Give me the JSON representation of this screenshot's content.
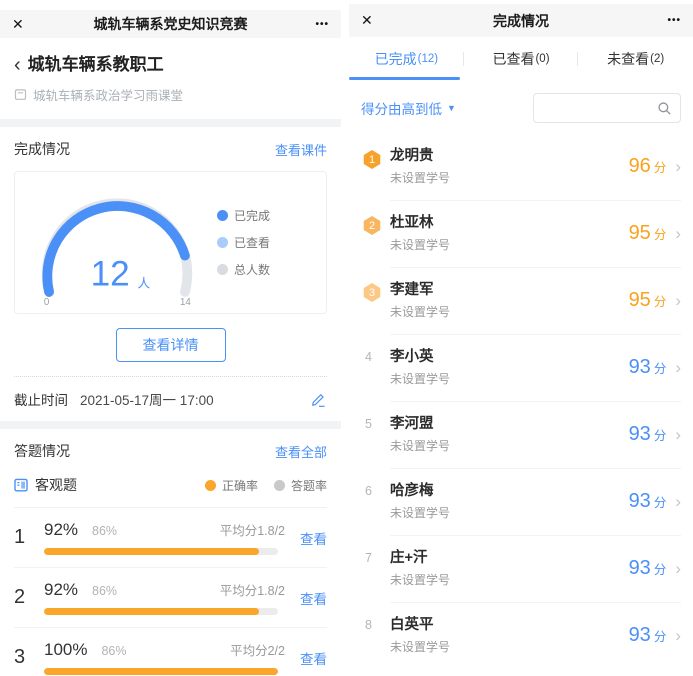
{
  "colors": {
    "accent_blue": "#4a90f7",
    "light_blue": "#a9ccfb",
    "legend_gray": "#d8dbdf",
    "orange": "#f9a62a",
    "bar_track": "#ececec",
    "medal_1": "#f7a32b",
    "medal_2": "#f9b55f",
    "medal_3": "#fbc985",
    "score_orange": "#faa21e",
    "score_blue": "#4a90f7"
  },
  "left": {
    "header": {
      "close": "✕",
      "title": "城轨车辆系党史知识竞赛",
      "menu": "•••"
    },
    "breadcrumb": {
      "back": "‹",
      "title": "城轨车辆系教职工",
      "subtitle": "城轨车辆系政治学习雨课堂"
    },
    "completion": {
      "section_title": "完成情况",
      "link": "查看课件",
      "gauge": {
        "value": "12",
        "unit": "人",
        "min_label": "0",
        "max_label": "14",
        "completed": 12,
        "total": 14
      },
      "legend": [
        {
          "label": "已完成",
          "color": "#4a90f7"
        },
        {
          "label": "已查看",
          "color": "#a9ccfb"
        },
        {
          "label": "总人数",
          "color": "#d8dbdf"
        }
      ],
      "detail_button": "查看详情",
      "deadline_label": "截止时间",
      "deadline_value": "2021-05-17周一 17:00"
    },
    "answers": {
      "section_title": "答题情况",
      "link": "查看全部",
      "type_label": "客观题",
      "legend": [
        {
          "label": "正确率",
          "color": "#f9a62a"
        },
        {
          "label": "答题率",
          "color": "#c9c9c9"
        }
      ],
      "rows": [
        {
          "index": "1",
          "correct": "92%",
          "answer": "86%",
          "avg": "平均分1.8/2",
          "view": "查看",
          "pct": 92
        },
        {
          "index": "2",
          "correct": "92%",
          "answer": "86%",
          "avg": "平均分1.8/2",
          "view": "查看",
          "pct": 92
        },
        {
          "index": "3",
          "correct": "100%",
          "answer": "86%",
          "avg": "平均分2/2",
          "view": "查看",
          "pct": 100
        }
      ]
    }
  },
  "right": {
    "header": {
      "close": "✕",
      "title": "完成情况",
      "menu": "•••"
    },
    "tabs": [
      {
        "label": "已完成",
        "count": "(12)",
        "active": true
      },
      {
        "label": "已查看",
        "count": "(0)",
        "active": false
      },
      {
        "label": "未查看",
        "count": "(2)",
        "active": false
      }
    ],
    "sort": {
      "label": "得分由高到低",
      "caret": "▼"
    },
    "search": {
      "value": "",
      "placeholder": ""
    },
    "score_unit": "分",
    "chevron": "›",
    "students": [
      {
        "rank": "1",
        "medal": true,
        "name": "龙明贵",
        "id_text": "未设置学号",
        "score": "96",
        "score_color": "orange"
      },
      {
        "rank": "2",
        "medal": true,
        "name": "杜亚林",
        "id_text": "未设置学号",
        "score": "95",
        "score_color": "orange"
      },
      {
        "rank": "3",
        "medal": true,
        "name": "李建军",
        "id_text": "未设置学号",
        "score": "95",
        "score_color": "orange"
      },
      {
        "rank": "4",
        "medal": false,
        "name": "李小英",
        "id_text": "未设置学号",
        "score": "93",
        "score_color": "blue"
      },
      {
        "rank": "5",
        "medal": false,
        "name": "李河盟",
        "id_text": "未设置学号",
        "score": "93",
        "score_color": "blue"
      },
      {
        "rank": "6",
        "medal": false,
        "name": "哈彦梅",
        "id_text": "未设置学号",
        "score": "93",
        "score_color": "blue"
      },
      {
        "rank": "7",
        "medal": false,
        "name": "庄+汗",
        "id_text": "未设置学号",
        "score": "93",
        "score_color": "blue"
      },
      {
        "rank": "8",
        "medal": false,
        "name": "白英平",
        "id_text": "未设置学号",
        "score": "93",
        "score_color": "blue"
      }
    ]
  }
}
